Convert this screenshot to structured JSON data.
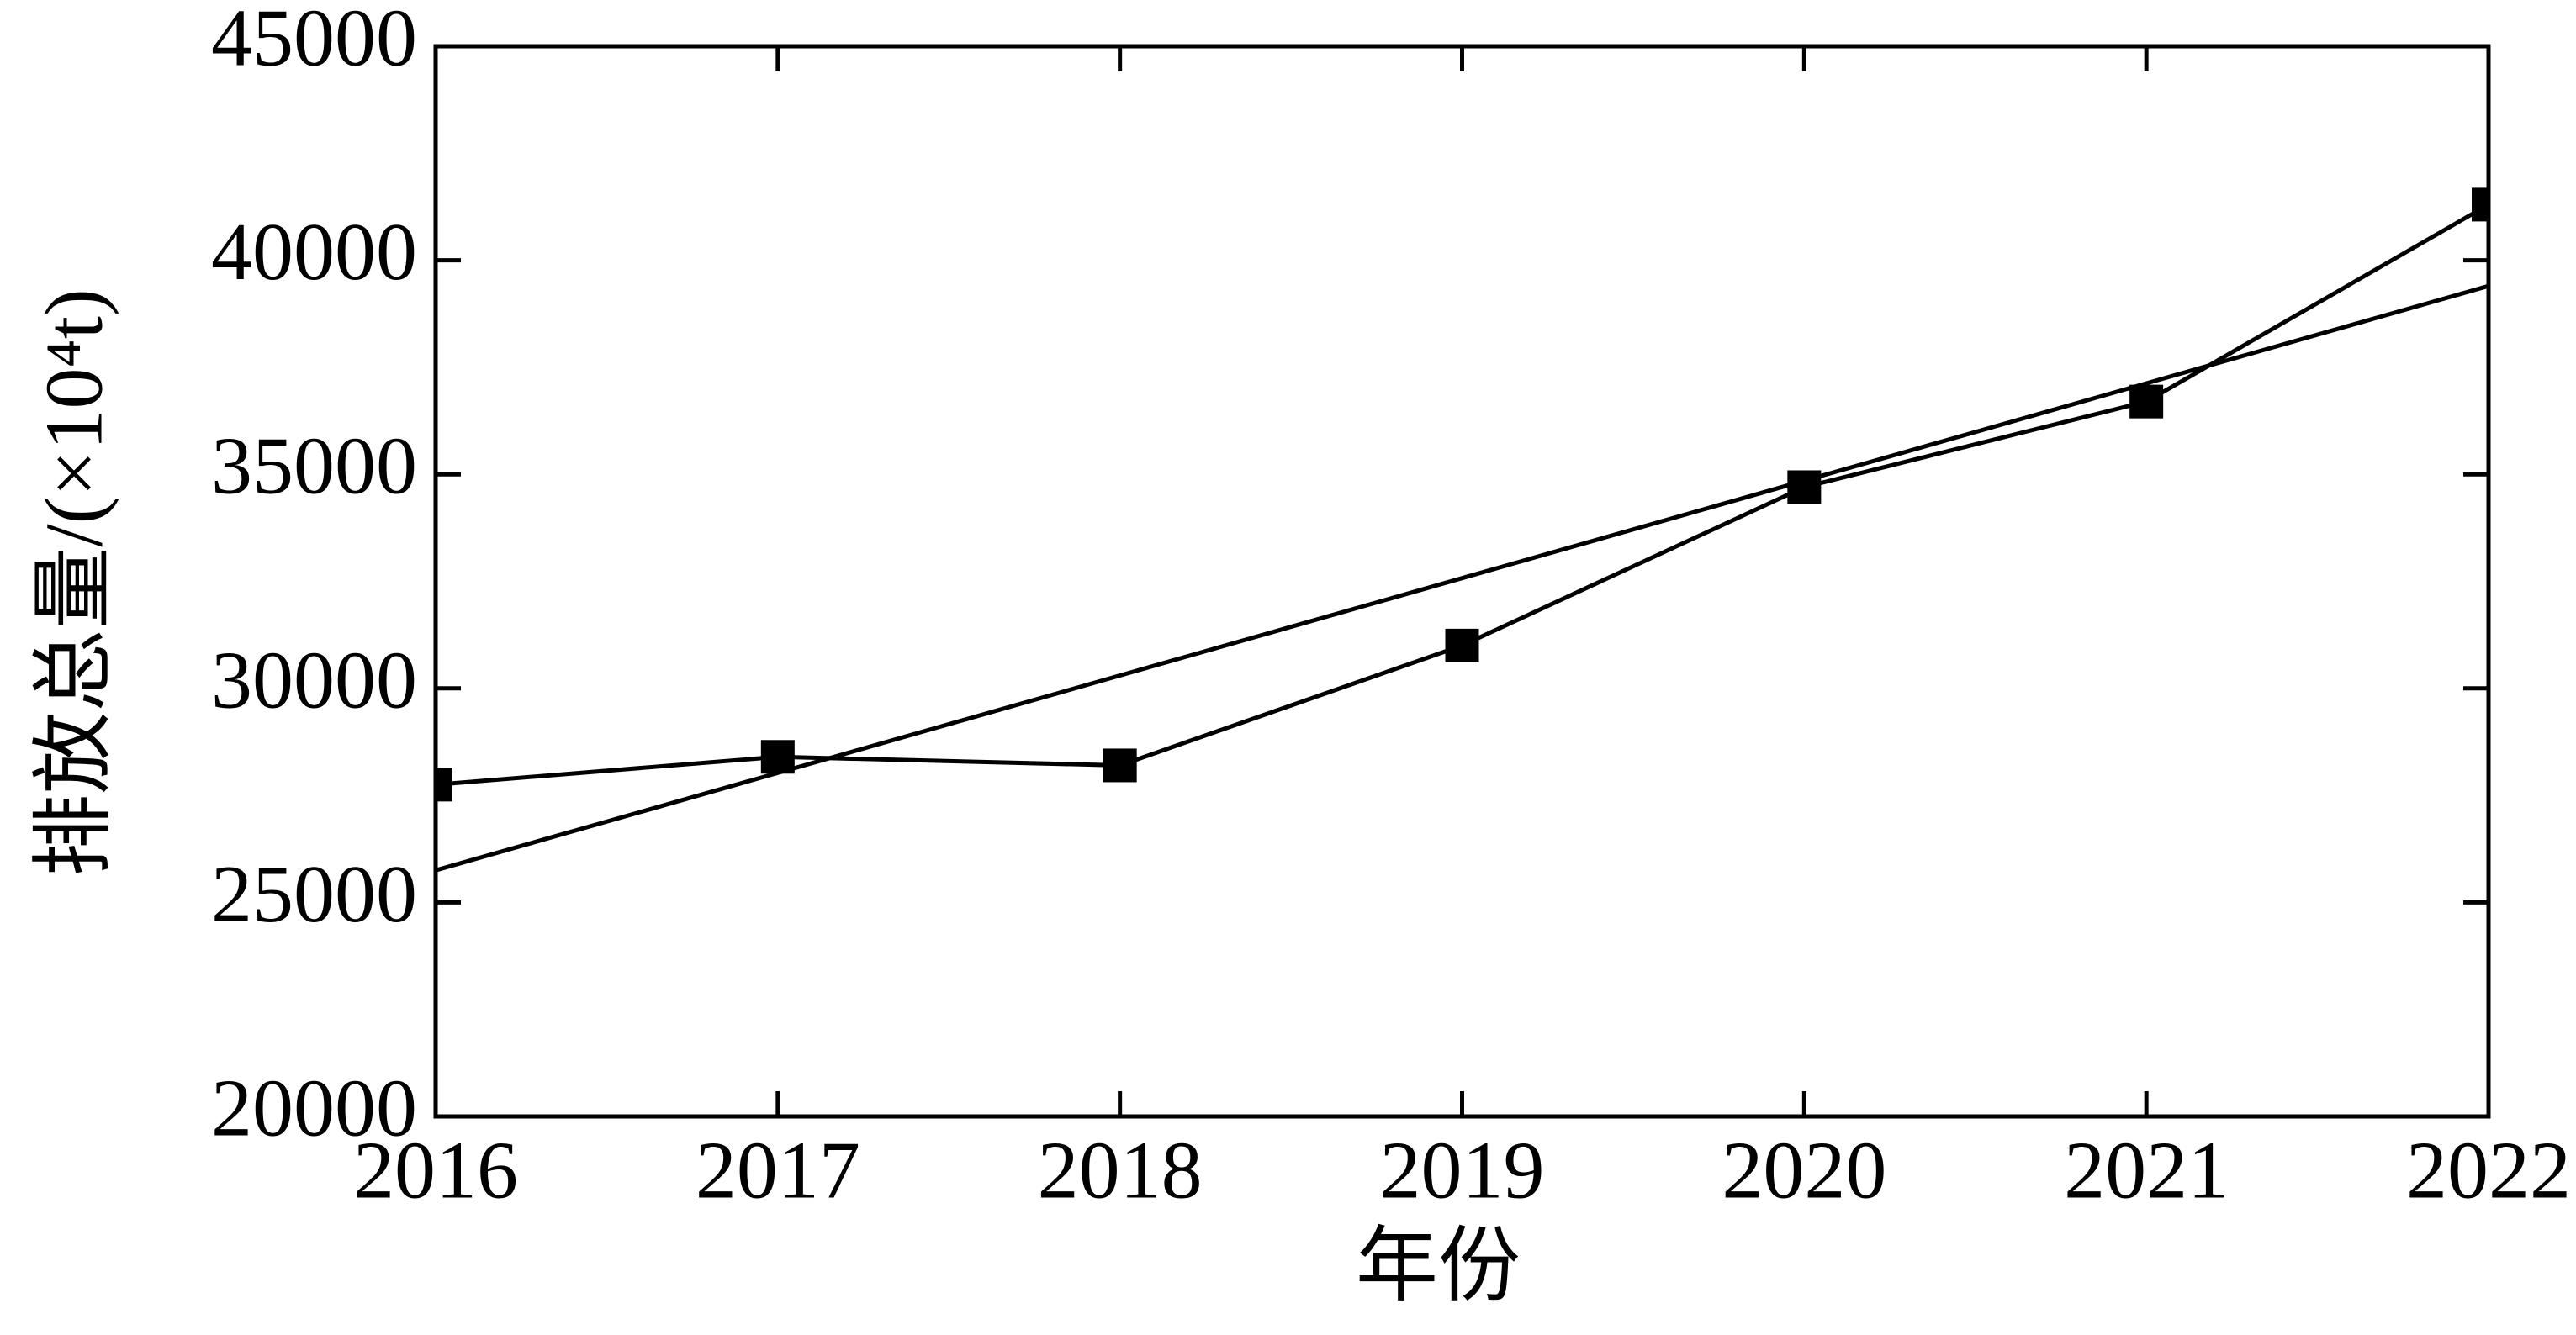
{
  "chart_data": {
    "type": "line",
    "x_label": "年份",
    "y_label": "排放总量/(×10⁴t)",
    "x": [
      2016,
      2017,
      2018,
      2019,
      2020,
      2021,
      2022
    ],
    "series": [
      {
        "color": "#000000",
        "marker": "square",
        "values": [
          27750,
          28400,
          28200,
          31000,
          34700,
          36700,
          41300
        ]
      },
      {
        "color": "#000000",
        "values": [
          25750,
          28025,
          30300,
          32575,
          34850,
          37125,
          39400
        ]
      }
    ],
    "xlim": [
      2016,
      2022
    ],
    "xticks": [
      2016,
      2017,
      2018,
      2019,
      2020,
      2021,
      2022
    ],
    "ylim": [
      20000,
      45000
    ],
    "yticks": [
      20000,
      25000,
      30000,
      35000,
      40000,
      45000
    ],
    "grid": false
  }
}
